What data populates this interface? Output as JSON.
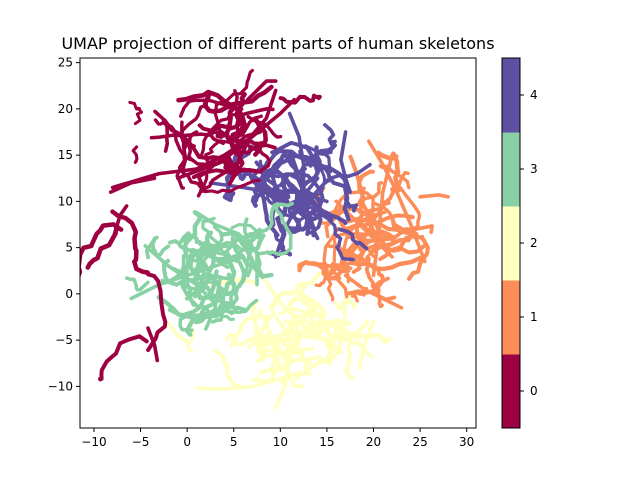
{
  "chart_data": {
    "type": "scatter",
    "title": "UMAP projection of different parts of human skeletons",
    "xlabel": "",
    "ylabel": "",
    "xlim": [
      -11.5,
      31
    ],
    "ylim": [
      -14.5,
      25.5
    ],
    "xticks": [
      -10,
      -5,
      0,
      5,
      10,
      15,
      20,
      25,
      30
    ],
    "yticks": [
      -10,
      -5,
      0,
      5,
      10,
      15,
      20,
      25
    ],
    "grid": false,
    "legend": "none",
    "colorbar": {
      "ticks": [
        0,
        1,
        2,
        3,
        4
      ],
      "range": [
        -0.5,
        4.5
      ],
      "colors": [
        "#9e0142",
        "#fc8d59",
        "#ffffbf",
        "#88d1a4",
        "#5e4fa2"
      ]
    },
    "series": [
      {
        "label": 0,
        "color": "#9e0142",
        "clusters": [
          {
            "center": [
              1.5,
              16.5
            ],
            "spread": [
              4.0,
              3.3
            ],
            "strokes": 24
          },
          {
            "center": [
              7.0,
              18.5
            ],
            "spread": [
              2.5,
              2.0
            ],
            "strokes": 10
          },
          {
            "center": [
              -7.5,
              7.5
            ],
            "spread": [
              0.6,
              1.0
            ],
            "strokes": 3
          },
          {
            "center": [
              -4.2,
              -5.5
            ],
            "spread": [
              0.3,
              1.0
            ],
            "strokes": 2
          }
        ],
        "paths": [
          [
            [
              -8,
              11.5
            ],
            [
              -3,
              13
            ],
            [
              1,
              13.5
            ],
            [
              4,
              15
            ],
            [
              7,
              17
            ],
            [
              10,
              19.5
            ],
            [
              11.5,
              21
            ]
          ],
          [
            [
              -1,
              12.5
            ],
            [
              3,
              14
            ],
            [
              6,
              16
            ],
            [
              8.5,
              19
            ],
            [
              9.5,
              22
            ]
          ],
          [
            [
              -8.2,
              11
            ],
            [
              -6,
              12
            ],
            [
              -3.5,
              12.5
            ]
          ],
          [
            [
              9.5,
              23
            ],
            [
              8.5,
              23
            ],
            [
              6.5,
              21
            ]
          ],
          [
            [
              -4.2,
              -3.7
            ],
            [
              -3.5,
              -5.5
            ],
            [
              -3.2,
              -7.2
            ]
          ],
          [
            [
              -7.8,
              6.5
            ],
            [
              -7.2,
              8.5
            ],
            [
              -6.5,
              9.5
            ]
          ]
        ]
      },
      {
        "label": 1,
        "color": "#fc8d59",
        "clusters": [
          {
            "center": [
              21.0,
              7.0
            ],
            "spread": [
              3.3,
              4.0
            ],
            "strokes": 28
          },
          {
            "center": [
              18.0,
              2.5
            ],
            "spread": [
              2.0,
              1.0
            ],
            "strokes": 8
          }
        ],
        "paths": [
          [
            [
              19.5,
              16.5
            ],
            [
              21,
              14
            ],
            [
              22.5,
              11
            ],
            [
              24,
              7.5
            ],
            [
              25.5,
              3.5
            ]
          ],
          [
            [
              17,
              2
            ],
            [
              19,
              0.5
            ],
            [
              21,
              -0.5
            ],
            [
              23,
              -1.5
            ]
          ],
          [
            [
              25,
              10.5
            ],
            [
              27,
              10.7
            ],
            [
              28,
              10.5
            ]
          ],
          [
            [
              16,
              10
            ],
            [
              18,
              8
            ],
            [
              20,
              6
            ],
            [
              22,
              4
            ]
          ],
          [
            [
              22,
              15
            ],
            [
              21,
              11
            ],
            [
              20.5,
              6
            ],
            [
              20,
              2
            ]
          ]
        ]
      },
      {
        "label": 2,
        "color": "#ffffbf",
        "clusters": [
          {
            "center": [
              10.5,
              -4.5
            ],
            "spread": [
              5.0,
              3.0
            ],
            "strokes": 28
          },
          {
            "center": [
              15.0,
              -3.5
            ],
            "spread": [
              2.5,
              2.0
            ],
            "strokes": 8
          }
        ],
        "paths": [
          [
            [
              1,
              -10.2
            ],
            [
              4,
              -10.3
            ],
            [
              7,
              -10
            ],
            [
              10,
              -9.2
            ],
            [
              12,
              -8.5
            ]
          ],
          [
            [
              9.5,
              -12.3
            ],
            [
              10.5,
              -10
            ],
            [
              11,
              -7
            ],
            [
              12,
              -5
            ]
          ],
          [
            [
              -2,
              -3.2
            ],
            [
              -1,
              -4.5
            ],
            [
              0,
              -5.2
            ]
          ],
          [
            [
              20,
              -3
            ],
            [
              19,
              -5.5
            ],
            [
              18.5,
              -8
            ]
          ],
          [
            [
              8,
              2
            ],
            [
              10,
              -1
            ],
            [
              12,
              -3
            ],
            [
              16,
              -6
            ]
          ]
        ]
      },
      {
        "label": 3,
        "color": "#88d1a4",
        "clusters": [
          {
            "center": [
              2.0,
              2.5
            ],
            "spread": [
              3.6,
              3.3
            ],
            "strokes": 28
          },
          {
            "center": [
              5.5,
              5.0
            ],
            "spread": [
              1.8,
              2.0
            ],
            "strokes": 10
          }
        ],
        "paths": [
          [
            [
              -6,
              -0.5
            ],
            [
              -3,
              1
            ],
            [
              0,
              2
            ],
            [
              3,
              3
            ],
            [
              6,
              4
            ]
          ],
          [
            [
              1,
              8.8
            ],
            [
              3,
              7.5
            ],
            [
              5.5,
              6.5
            ],
            [
              7.5,
              4.5
            ],
            [
              7.5,
              1
            ]
          ],
          [
            [
              2,
              -3.8
            ],
            [
              3,
              -1.5
            ],
            [
              3.5,
              1.5
            ]
          ],
          [
            [
              -4.5,
              5.2
            ],
            [
              -2,
              3
            ],
            [
              1,
              1
            ],
            [
              3,
              -1
            ]
          ]
        ]
      },
      {
        "label": 4,
        "color": "#5e4fa2",
        "clusters": [
          {
            "center": [
              12.0,
              11.5
            ],
            "spread": [
              3.3,
              3.0
            ],
            "strokes": 30
          },
          {
            "center": [
              13.0,
              8.0
            ],
            "spread": [
              2.4,
              2.0
            ],
            "strokes": 8
          }
        ],
        "paths": [
          [
            [
              2.5,
              12
            ],
            [
              6,
              11.5
            ],
            [
              9,
              11
            ],
            [
              12,
              11
            ],
            [
              15,
              10
            ]
          ],
          [
            [
              17,
              17.5
            ],
            [
              16.5,
              14.5
            ],
            [
              17,
              12.5
            ],
            [
              17.5,
              11
            ]
          ],
          [
            [
              11,
              19.5
            ],
            [
              12,
              17
            ],
            [
              12.5,
              14
            ],
            [
              12.5,
              10
            ]
          ],
          [
            [
              5.5,
              13.5
            ],
            [
              7.5,
              12.5
            ],
            [
              10,
              10.5
            ],
            [
              13,
              8
            ],
            [
              14,
              6
            ]
          ],
          [
            [
              9.5,
              4
            ],
            [
              10.5,
              7
            ],
            [
              12,
              10
            ],
            [
              14,
              12.5
            ]
          ]
        ]
      }
    ]
  }
}
